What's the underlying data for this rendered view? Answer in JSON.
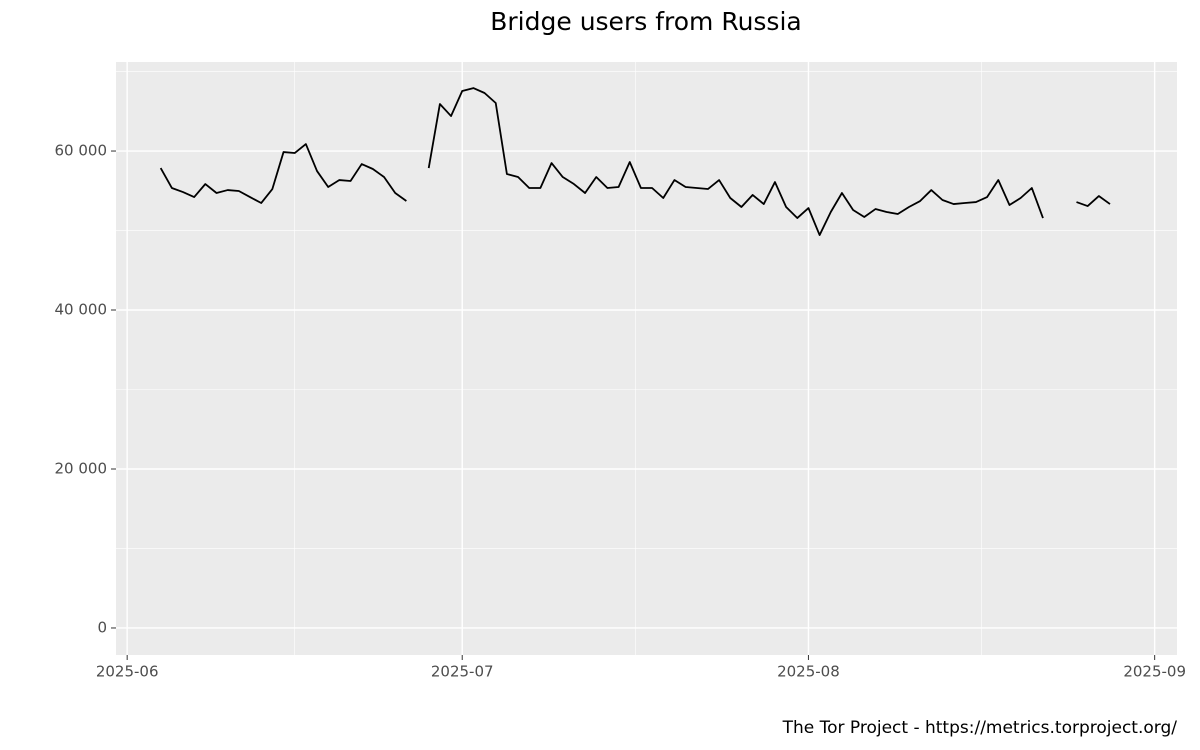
{
  "chart_data": {
    "type": "line",
    "title": "Bridge users from Russia",
    "caption": "The Tor Project - https://metrics.torproject.org/",
    "x": [
      "2025-06-04",
      "2025-06-05",
      "2025-06-06",
      "2025-06-07",
      "2025-06-08",
      "2025-06-09",
      "2025-06-10",
      "2025-06-11",
      "2025-06-12",
      "2025-06-13",
      "2025-06-14",
      "2025-06-15",
      "2025-06-16",
      "2025-06-17",
      "2025-06-18",
      "2025-06-19",
      "2025-06-20",
      "2025-06-21",
      "2025-06-22",
      "2025-06-23",
      "2025-06-24",
      "2025-06-25",
      "2025-06-26",
      "2025-06-27",
      "2025-06-28",
      "2025-06-29",
      "2025-06-30",
      "2025-07-01",
      "2025-07-02",
      "2025-07-03",
      "2025-07-04",
      "2025-07-05",
      "2025-07-06",
      "2025-07-07",
      "2025-07-08",
      "2025-07-09",
      "2025-07-10",
      "2025-07-11",
      "2025-07-12",
      "2025-07-13",
      "2025-07-14",
      "2025-07-15",
      "2025-07-16",
      "2025-07-17",
      "2025-07-18",
      "2025-07-19",
      "2025-07-20",
      "2025-07-21",
      "2025-07-22",
      "2025-07-23",
      "2025-07-24",
      "2025-07-25",
      "2025-07-26",
      "2025-07-27",
      "2025-07-28",
      "2025-07-29",
      "2025-07-30",
      "2025-07-31",
      "2025-08-01",
      "2025-08-02",
      "2025-08-03",
      "2025-08-04",
      "2025-08-05",
      "2025-08-06",
      "2025-08-07",
      "2025-08-08",
      "2025-08-09",
      "2025-08-10",
      "2025-08-11",
      "2025-08-12",
      "2025-08-13",
      "2025-08-14",
      "2025-08-15",
      "2025-08-16",
      "2025-08-17",
      "2025-08-18",
      "2025-08-19",
      "2025-08-20",
      "2025-08-21",
      "2025-08-22",
      "2025-08-23",
      "2025-08-24",
      "2025-08-25",
      "2025-08-26",
      "2025-08-27",
      "2025-08-28"
    ],
    "series": [
      {
        "color": "#000000",
        "values": [
          57860,
          55350,
          54840,
          54210,
          55850,
          54720,
          55090,
          54970,
          54210,
          53460,
          55220,
          59870,
          59750,
          60880,
          57480,
          55470,
          56350,
          56230,
          58360,
          57740,
          56730,
          54720,
          53710,
          null,
          57860,
          65910,
          64400,
          67550,
          67920,
          67300,
          66040,
          57110,
          56730,
          55350,
          55350,
          58490,
          56730,
          55850,
          54720,
          56730,
          55350,
          55470,
          58620,
          55350,
          55350,
          54090,
          56350,
          55470,
          55350,
          55220,
          56350,
          54090,
          52960,
          54470,
          53330,
          56100,
          52960,
          51570,
          52830,
          49430,
          52330,
          54720,
          52580,
          51700,
          52700,
          52330,
          52080,
          52960,
          53710,
          55090,
          53840,
          53330,
          53460,
          53580,
          54210,
          56350,
          53210,
          54090,
          55350,
          51570,
          null,
          null,
          53580,
          53080,
          54340,
          53330
        ]
      }
    ],
    "xlim": [
      "2025-05-31",
      "2025-09-03"
    ],
    "xticks": [
      {
        "value": "2025-06",
        "label": "2025-06"
      },
      {
        "value": "2025-07",
        "label": "2025-07"
      },
      {
        "value": "2025-08",
        "label": "2025-08"
      },
      {
        "value": "2025-09",
        "label": "2025-09"
      }
    ],
    "ylim": [
      -3400,
      71200
    ],
    "yticks": [
      0,
      {
        "value": 20000,
        "label": "20 000"
      },
      {
        "value": 40000,
        "label": "40 000"
      },
      {
        "value": 60000,
        "label": "60 000"
      }
    ],
    "grid": true
  }
}
